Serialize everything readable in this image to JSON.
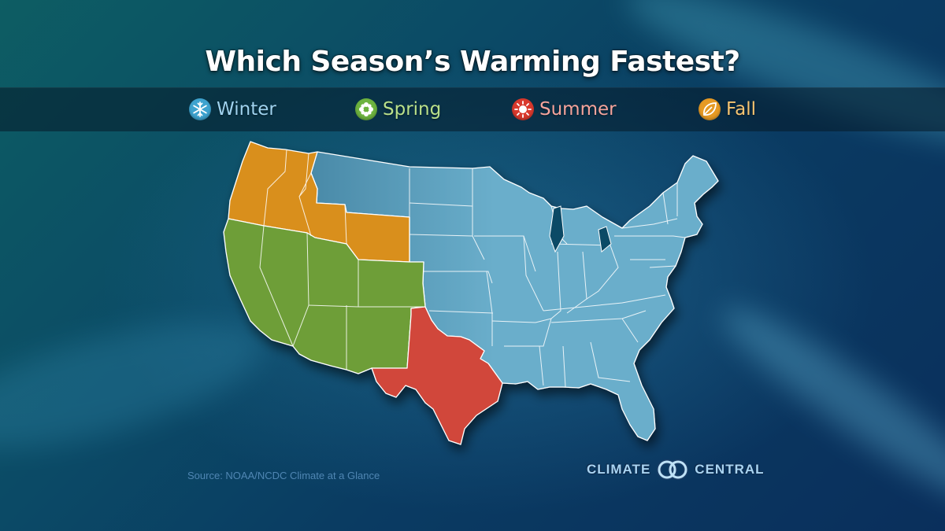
{
  "title": "Which Season’s Warming Fastest?",
  "legend": [
    {
      "label": "Winter",
      "color": "#3ea3cf",
      "text_color": "#9fd2ee",
      "icon": "snowflake-icon"
    },
    {
      "label": "Spring",
      "color": "#6db33f",
      "text_color": "#b9e08a",
      "icon": "flower-icon"
    },
    {
      "label": "Summer",
      "color": "#d9392d",
      "text_color": "#f5a49c",
      "icon": "sun-icon"
    },
    {
      "label": "Fall",
      "color": "#e69a24",
      "text_color": "#f6c471",
      "icon": "leaf-icon"
    }
  ],
  "regions": {
    "winter": {
      "season": "Winter",
      "fill": "#6aaecb",
      "fill_dark": "#4a8aa8"
    },
    "spring": {
      "season": "Spring",
      "fill": "#6e9e37"
    },
    "summer": {
      "season": "Summer",
      "fill": "#d1473a"
    },
    "fall": {
      "season": "Fall",
      "fill": "#d98f1f"
    }
  },
  "source": "Source: NOAA/NCDC Climate at a Glance",
  "logo": {
    "left": "CLIMATE",
    "right": "CENTRAL"
  }
}
